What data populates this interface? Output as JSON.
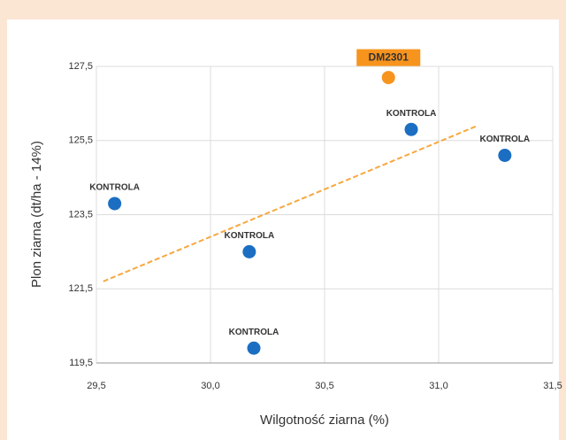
{
  "chart_data": {
    "type": "scatter",
    "x_label": "Wilgotność ziarna (%)",
    "y_label": "Plon ziarna (dt/ha - 14%)",
    "x": [
      30.78,
      30.88,
      31.29,
      29.58,
      30.17,
      30.19
    ],
    "values": [
      127.2,
      125.8,
      125.1,
      123.8,
      122.5,
      119.9
    ],
    "labels": [
      "DM2301",
      "KONTROLA",
      "KONTROLA",
      "KONTROLA",
      "KONTROLA",
      "KONTROLA"
    ],
    "colors": [
      "#f7941d",
      "#1b6ec2",
      "#1b6ec2",
      "#1b6ec2",
      "#1b6ec2",
      "#1b6ec2"
    ],
    "label_boxes": [
      true,
      false,
      false,
      false,
      false,
      false
    ],
    "trendline": {
      "x": [
        29.53,
        31.17
      ],
      "y": [
        121.7,
        125.9
      ],
      "color": "#f7a840"
    },
    "xlim": [
      29.5,
      31.5
    ],
    "xticks": [
      {
        "value": 29.5,
        "label": "29,5"
      },
      {
        "value": 30.0,
        "label": "30,0"
      },
      {
        "value": 30.5,
        "label": "30,5"
      },
      {
        "value": 31.0,
        "label": "31,0"
      },
      {
        "value": 31.5,
        "label": "31,5"
      }
    ],
    "ylim": [
      119.5,
      127.5
    ],
    "yticks": [
      {
        "value": 119.5,
        "label": "119,5"
      },
      {
        "value": 121.5,
        "label": "121,5"
      },
      {
        "value": 123.5,
        "label": "123,5"
      },
      {
        "value": 125.5,
        "label": "125,5"
      },
      {
        "value": 127.5,
        "label": "127,5"
      }
    ],
    "grid": true
  }
}
